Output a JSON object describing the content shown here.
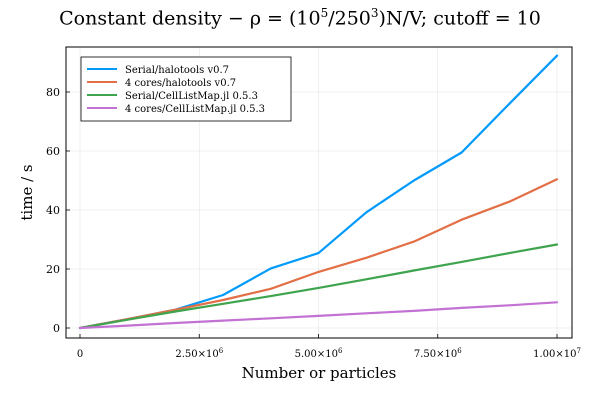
{
  "chart_data": {
    "type": "line",
    "title": {
      "prefix": "Constant density − ρ = (10",
      "exp1": "5",
      "mid": "/250",
      "exp2": "3",
      "suffix": ")N/V;  cutoff = 10"
    },
    "xlabel": "Number or particles",
    "ylabel": "time / s",
    "xlim": [
      0,
      10000000
    ],
    "ylim": [
      0,
      95
    ],
    "x_ticks": [
      {
        "value": 0,
        "label": "0"
      },
      {
        "value": 2500000,
        "label": "2.50×10",
        "exp": "6"
      },
      {
        "value": 5000000,
        "label": "5.00×10",
        "exp": "6"
      },
      {
        "value": 7500000,
        "label": "7.50×10",
        "exp": "6"
      },
      {
        "value": 10000000,
        "label": "1.00×10",
        "exp": "7"
      }
    ],
    "y_ticks": [
      0,
      20,
      40,
      60,
      80
    ],
    "grid": true,
    "legend_position": "top-left",
    "x": [
      0,
      1000000,
      2000000,
      3000000,
      4000000,
      5000000,
      6000000,
      7000000,
      8000000,
      9000000,
      10000000
    ],
    "series": [
      {
        "name": "Serial/halotools v0.7",
        "color": "#009AFA",
        "values": [
          0,
          3.0,
          6.2,
          11.2,
          20.2,
          25.4,
          39.2,
          50.0,
          59.5,
          76.0,
          92.3
        ]
      },
      {
        "name": "4 cores/halotools v0.7",
        "color": "#E26F46",
        "values": [
          0,
          3.0,
          6.2,
          9.5,
          13.3,
          19.0,
          23.8,
          29.3,
          36.7,
          42.8,
          50.4
        ]
      },
      {
        "name": "Serial/CellListMap.jl 0.5.3",
        "color": "#3EA44E",
        "values": [
          0,
          2.8,
          5.6,
          8.2,
          10.8,
          13.6,
          16.5,
          19.5,
          22.4,
          25.4,
          28.3
        ]
      },
      {
        "name": "4 cores/CellListMap.jl 0.5.3",
        "color": "#C371D2",
        "values": [
          0,
          0.8,
          1.7,
          2.5,
          3.3,
          4.1,
          5.0,
          5.8,
          6.8,
          7.7,
          8.7
        ]
      }
    ]
  }
}
